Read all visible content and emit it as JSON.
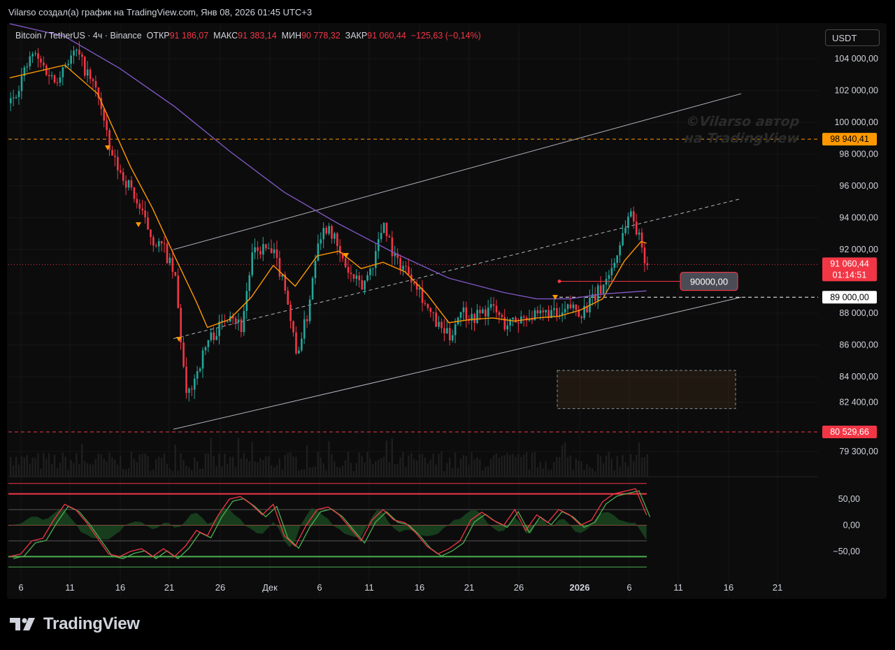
{
  "header": {
    "text": "Vilarso создал(а) график на TradingView.com, Янв 08, 2026 01:45 UTC+3"
  },
  "legend": {
    "symbol": "Bitcoin / TetherUS · 4ч · Binance",
    "open_label": "ОТКР",
    "open_value": "91 186,07",
    "high_label": "МАКС",
    "high_value": "91 383,14",
    "low_label": "МИН",
    "low_value": "90 778,32",
    "close_label": "ЗАКР",
    "close_value": "91 060,44",
    "change": "−125,63 (−0,14%)"
  },
  "currency_button": "USDT",
  "watermark": {
    "line1": "©Vilarso автор",
    "line2": "на TradingView"
  },
  "logo": {
    "text": "TradingView"
  },
  "colors": {
    "up": "#26a69a",
    "down": "#f23645",
    "ema_short": "#ff9800",
    "ema_long": "#7e57c2",
    "level_orange": "#ff9800",
    "level_red": "#f23645",
    "channel": "#b2b5be"
  },
  "chart_data": {
    "type": "candlestick",
    "symbol": "BTCUSDT",
    "timeframe": "4ч",
    "price_axis": {
      "ticks": [
        104000,
        102000,
        100000,
        98000,
        96000,
        94000,
        92000,
        88000,
        86000,
        84000,
        82400,
        79300
      ],
      "tick_labels": [
        "104 000,00",
        "102 000,00",
        "100 000,00",
        "98 000,00",
        "96 000,00",
        "94 000,00",
        "92 000,00",
        "88 000,00",
        "86 000,00",
        "84 000,00",
        "82 400,00",
        "79 300,00"
      ],
      "range": [
        78800,
        105400
      ]
    },
    "time_axis": {
      "labels": [
        "6",
        "11",
        "16",
        "21",
        "26",
        "Дек",
        "6",
        "11",
        "16",
        "21",
        "26",
        "2026",
        "6",
        "11",
        "16",
        "21"
      ]
    },
    "price_path": [
      [
        0,
        101200
      ],
      [
        2,
        102800
      ],
      [
        4,
        104300
      ],
      [
        6,
        103500
      ],
      [
        8,
        102600
      ],
      [
        10,
        103800
      ],
      [
        12,
        104400
      ],
      [
        14,
        103000
      ],
      [
        16,
        101700
      ],
      [
        18,
        98200
      ],
      [
        20,
        96800
      ],
      [
        22,
        95800
      ],
      [
        24,
        94100
      ],
      [
        26,
        92600
      ],
      [
        28,
        92000
      ],
      [
        30,
        90100
      ],
      [
        32,
        82600
      ],
      [
        34,
        84400
      ],
      [
        36,
        86300
      ],
      [
        38,
        87100
      ],
      [
        40,
        88200
      ],
      [
        42,
        87100
      ],
      [
        44,
        91600
      ],
      [
        46,
        92100
      ],
      [
        48,
        91600
      ],
      [
        50,
        89800
      ],
      [
        52,
        85400
      ],
      [
        54,
        87800
      ],
      [
        56,
        92800
      ],
      [
        58,
        93600
      ],
      [
        60,
        91600
      ],
      [
        62,
        90300
      ],
      [
        64,
        89600
      ],
      [
        66,
        91200
      ],
      [
        68,
        93800
      ],
      [
        70,
        91400
      ],
      [
        72,
        90800
      ],
      [
        74,
        89900
      ],
      [
        76,
        88200
      ],
      [
        78,
        87100
      ],
      [
        80,
        86500
      ],
      [
        82,
        88300
      ],
      [
        84,
        87700
      ],
      [
        86,
        88100
      ],
      [
        88,
        88300
      ],
      [
        90,
        87300
      ],
      [
        92,
        87500
      ],
      [
        94,
        87900
      ],
      [
        96,
        87700
      ],
      [
        98,
        88100
      ],
      [
        100,
        87700
      ],
      [
        102,
        88400
      ],
      [
        104,
        88100
      ],
      [
        106,
        88800
      ],
      [
        108,
        89800
      ],
      [
        110,
        91200
      ],
      [
        112,
        93600
      ],
      [
        113,
        94400
      ],
      [
        114,
        93300
      ],
      [
        115,
        92100
      ],
      [
        116,
        91060
      ]
    ],
    "indicators": [
      {
        "name": "",
        "color": "#ff9800",
        "values": [
          [
            0,
            102800
          ],
          [
            10,
            103600
          ],
          [
            16,
            101800
          ],
          [
            22,
            97200
          ],
          [
            26,
            94600
          ],
          [
            30,
            91600
          ],
          [
            34,
            88700
          ],
          [
            36,
            87100
          ],
          [
            40,
            87600
          ],
          [
            44,
            89000
          ],
          [
            48,
            91000
          ],
          [
            52,
            89700
          ],
          [
            56,
            91600
          ],
          [
            60,
            91900
          ],
          [
            64,
            90800
          ],
          [
            68,
            91200
          ],
          [
            72,
            90600
          ],
          [
            76,
            89200
          ],
          [
            80,
            87400
          ],
          [
            84,
            87600
          ],
          [
            88,
            87700
          ],
          [
            92,
            87500
          ],
          [
            96,
            87700
          ],
          [
            100,
            87800
          ],
          [
            104,
            88200
          ],
          [
            108,
            88900
          ],
          [
            112,
            91300
          ],
          [
            115,
            92500
          ],
          [
            116,
            92400
          ]
        ]
      },
      {
        "name": "",
        "color": "#7e57c2",
        "values": [
          [
            0,
            106200
          ],
          [
            10,
            105400
          ],
          [
            20,
            103400
          ],
          [
            30,
            101000
          ],
          [
            40,
            98200
          ],
          [
            50,
            95600
          ],
          [
            60,
            93600
          ],
          [
            70,
            91800
          ],
          [
            80,
            90200
          ],
          [
            90,
            89300
          ],
          [
            96,
            88900
          ],
          [
            102,
            88900
          ],
          [
            108,
            89200
          ],
          [
            116,
            89400
          ]
        ]
      }
    ],
    "levels": [
      {
        "price": 98940.41,
        "label": "98 940,41",
        "color": "#ff9800",
        "style": "dashed"
      },
      {
        "price": 89000,
        "label": "89 000,00",
        "color": "#ffffff",
        "style": "dashed"
      },
      {
        "price": 80529.66,
        "label": "80 529,66",
        "color": "#f23645",
        "style": "dashed"
      },
      {
        "price": 91060.44,
        "label": "91 060,44",
        "sublabel": "01:14:51",
        "color": "#f23645",
        "style": "dotted"
      }
    ],
    "annotation": {
      "price": 90000,
      "text": "90000,00"
    },
    "box_zone": {
      "from": 82000,
      "to": 84400
    },
    "channel": {
      "upper": [
        [
          30,
          92000
        ],
        [
          130,
          101800
        ]
      ],
      "middle": [
        [
          30,
          86400
        ],
        [
          130,
          95200
        ]
      ],
      "lower": [
        [
          30,
          80700
        ],
        [
          130,
          89000
        ]
      ]
    },
    "oscillator": {
      "ticks": [
        50,
        0,
        -50
      ],
      "tick_labels": [
        "50,00",
        "0,00",
        "−50,00"
      ],
      "range": [
        -85,
        85
      ],
      "lines": [
        80,
        60,
        30,
        0,
        -30,
        -60,
        -80
      ],
      "path": [
        [
          0,
          -60
        ],
        [
          2,
          -55
        ],
        [
          4,
          -30
        ],
        [
          6,
          -25
        ],
        [
          8,
          10
        ],
        [
          10,
          40
        ],
        [
          12,
          30
        ],
        [
          14,
          5
        ],
        [
          16,
          -25
        ],
        [
          18,
          -55
        ],
        [
          20,
          -60
        ],
        [
          22,
          -50
        ],
        [
          24,
          -45
        ],
        [
          26,
          -60
        ],
        [
          28,
          -45
        ],
        [
          30,
          -60
        ],
        [
          32,
          -40
        ],
        [
          34,
          -10
        ],
        [
          36,
          -20
        ],
        [
          38,
          20
        ],
        [
          40,
          50
        ],
        [
          42,
          55
        ],
        [
          44,
          40
        ],
        [
          46,
          20
        ],
        [
          48,
          40
        ],
        [
          50,
          -20
        ],
        [
          52,
          -40
        ],
        [
          54,
          0
        ],
        [
          56,
          30
        ],
        [
          58,
          35
        ],
        [
          60,
          20
        ],
        [
          62,
          -5
        ],
        [
          64,
          -30
        ],
        [
          66,
          10
        ],
        [
          68,
          30
        ],
        [
          70,
          10
        ],
        [
          72,
          5
        ],
        [
          74,
          -15
        ],
        [
          76,
          -40
        ],
        [
          78,
          -55
        ],
        [
          80,
          -45
        ],
        [
          82,
          -30
        ],
        [
          84,
          10
        ],
        [
          86,
          25
        ],
        [
          88,
          10
        ],
        [
          90,
          0
        ],
        [
          92,
          30
        ],
        [
          94,
          -10
        ],
        [
          96,
          20
        ],
        [
          98,
          5
        ],
        [
          100,
          30
        ],
        [
          102,
          20
        ],
        [
          104,
          0
        ],
        [
          106,
          10
        ],
        [
          108,
          45
        ],
        [
          110,
          60
        ],
        [
          112,
          65
        ],
        [
          114,
          70
        ],
        [
          116,
          20
        ]
      ]
    },
    "grid": true
  }
}
